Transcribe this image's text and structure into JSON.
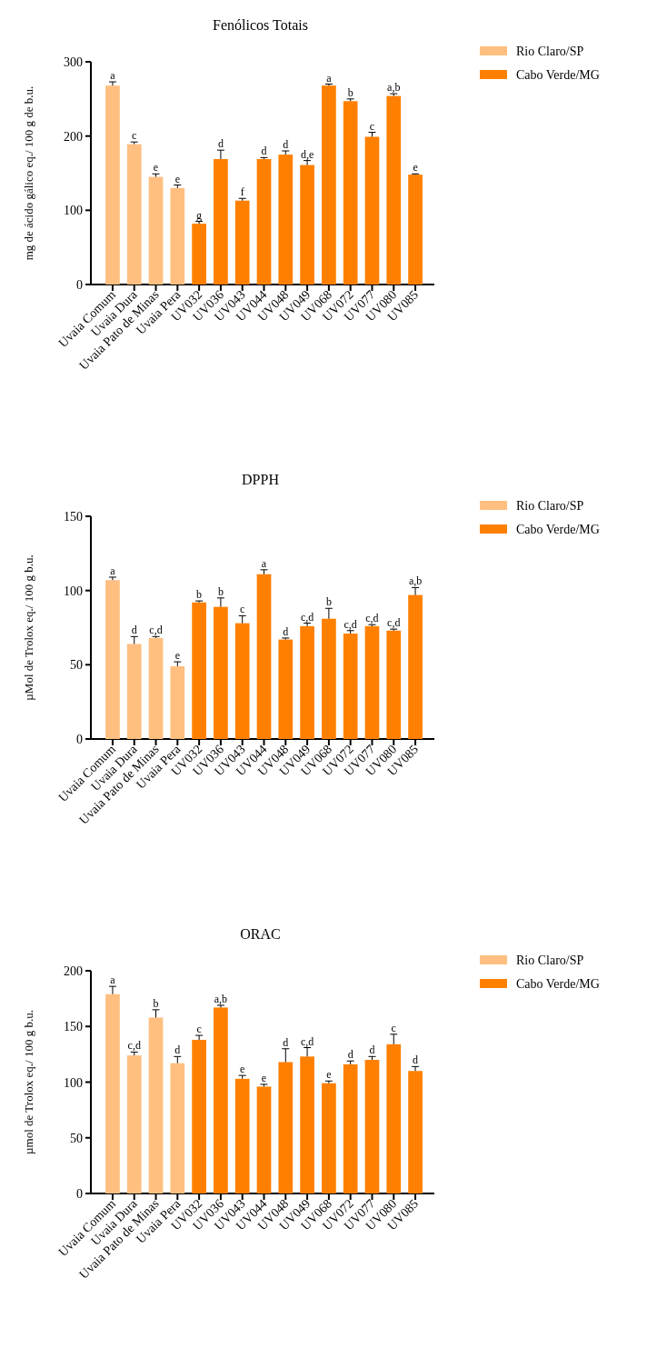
{
  "chart_data": [
    {
      "type": "bar",
      "title": "Fenólicos Totais",
      "ylabel": "mg de ácido gálico eq./ 100 g de b.u.",
      "categories": [
        "Uvaia Comum",
        "Uvaia Dura",
        "Uvaia Pato de Minas",
        "Uvaia Pera",
        "UV032",
        "UV036",
        "UV043",
        "UV044",
        "UV048",
        "UV049",
        "UV068",
        "UV072",
        "UV077",
        "UV080",
        "UV085"
      ],
      "ylim": [
        0,
        300
      ],
      "yticks": [
        0,
        100,
        200,
        300
      ],
      "legend": "right",
      "series": [
        {
          "name": "Rio Claro/SP",
          "color": "#ffbf80",
          "values": [
            268,
            189,
            145,
            130,
            null,
            null,
            null,
            null,
            null,
            null,
            null,
            null,
            null,
            null,
            null
          ],
          "errors": [
            5,
            3,
            4,
            4,
            null,
            null,
            null,
            null,
            null,
            null,
            null,
            null,
            null,
            null,
            null
          ],
          "value_labels": [
            "a",
            "c",
            "e",
            "e",
            null,
            null,
            null,
            null,
            null,
            null,
            null,
            null,
            null,
            null,
            null
          ]
        },
        {
          "name": "Cabo Verde/MG",
          "color": "#ff8000",
          "values": [
            null,
            null,
            null,
            null,
            82,
            169,
            113,
            169,
            175,
            161,
            268,
            247,
            199,
            254,
            148
          ],
          "errors": [
            null,
            null,
            null,
            null,
            3,
            12,
            3,
            2,
            5,
            6,
            2,
            3,
            6,
            3,
            1
          ],
          "value_labels": [
            null,
            null,
            null,
            null,
            "g",
            "d",
            "f",
            "d",
            "d",
            "d,e",
            "a",
            "b",
            "c",
            "a,b",
            "e"
          ]
        }
      ]
    },
    {
      "type": "bar",
      "title": "DPPH",
      "ylabel": "µMol de Trolox eq./ 100 g b.u.",
      "categories": [
        "Uvaia Comum",
        "Uvaia Dura",
        "Uvaia Pato de Minas",
        "Uvaia Pera",
        "UV032",
        "UV036",
        "UV043",
        "UV044",
        "UV048",
        "UV049",
        "UV068",
        "UV072",
        "UV077",
        "UV080",
        "UV085"
      ],
      "ylim": [
        0,
        150
      ],
      "yticks": [
        0,
        50,
        100,
        150
      ],
      "legend": "right",
      "series": [
        {
          "name": "Rio Claro/SP",
          "color": "#ffbf80",
          "values": [
            107,
            64,
            68,
            49,
            null,
            null,
            null,
            null,
            null,
            null,
            null,
            null,
            null,
            null,
            null
          ],
          "errors": [
            2,
            5,
            1,
            3,
            null,
            null,
            null,
            null,
            null,
            null,
            null,
            null,
            null,
            null,
            null
          ],
          "value_labels": [
            "a",
            "d",
            "c,d",
            "e",
            null,
            null,
            null,
            null,
            null,
            null,
            null,
            null,
            null,
            null,
            null
          ]
        },
        {
          "name": "Cabo Verde/MG",
          "color": "#ff8000",
          "values": [
            null,
            null,
            null,
            null,
            92,
            89,
            78,
            111,
            67,
            76,
            81,
            71,
            76,
            73,
            97
          ],
          "errors": [
            null,
            null,
            null,
            null,
            1,
            6,
            5,
            3,
            1,
            2,
            7,
            2,
            1,
            1,
            5
          ],
          "value_labels": [
            null,
            null,
            null,
            null,
            "b",
            "b",
            "c",
            "a",
            "d",
            "c,d",
            "b",
            "c,d",
            "c,d",
            "c,d",
            "a,b"
          ]
        }
      ]
    },
    {
      "type": "bar",
      "title": "ORAC",
      "ylabel": "µmol de Trolox eq./ 100 g b.u.",
      "categories": [
        "Uvaia Comum",
        "Uvaia Dura",
        "Uvaia Pato de Minas",
        "Uvaia Pera",
        "UV032",
        "UV036",
        "UV043",
        "UV044",
        "UV048",
        "UV049",
        "UV068",
        "UV072",
        "UV077",
        "UV080",
        "UV085"
      ],
      "ylim": [
        0,
        200
      ],
      "yticks": [
        0,
        50,
        100,
        150,
        200
      ],
      "legend": "right",
      "series": [
        {
          "name": "Rio Claro/SP",
          "color": "#ffbf80",
          "values": [
            179,
            124,
            158,
            117,
            null,
            null,
            null,
            null,
            null,
            null,
            null,
            null,
            null,
            null,
            null
          ],
          "errors": [
            7,
            3,
            7,
            6,
            null,
            null,
            null,
            null,
            null,
            null,
            null,
            null,
            null,
            null,
            null
          ],
          "value_labels": [
            "a",
            "c,d",
            "b",
            "d",
            null,
            null,
            null,
            null,
            null,
            null,
            null,
            null,
            null,
            null,
            null
          ]
        },
        {
          "name": "Cabo Verde/MG",
          "color": "#ff8000",
          "values": [
            null,
            null,
            null,
            null,
            138,
            167,
            103,
            96,
            118,
            123,
            99,
            116,
            120,
            134,
            110
          ],
          "errors": [
            null,
            null,
            null,
            null,
            4,
            2,
            3,
            2,
            12,
            8,
            2,
            3,
            3,
            9,
            4
          ],
          "value_labels": [
            null,
            null,
            null,
            null,
            "c",
            "a,b",
            "e",
            "e",
            "d",
            "c,d",
            "e",
            "d",
            "d",
            "c",
            "d"
          ]
        }
      ]
    }
  ]
}
